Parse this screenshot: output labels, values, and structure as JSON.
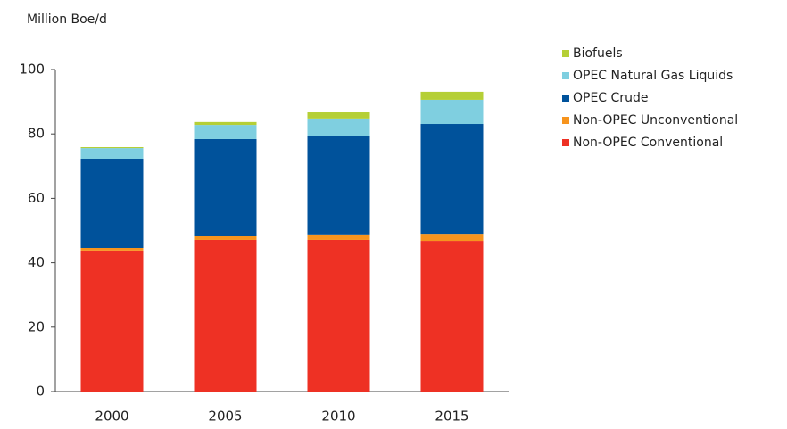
{
  "chart_data": {
    "type": "stacked_bar",
    "y_label": "Million Boe/d",
    "categories": [
      "2000",
      "2005",
      "2010",
      "2015"
    ],
    "series": [
      {
        "name": "Non-OPEC Conventional",
        "color": "#ee3124",
        "values": [
          43.8,
          47.1,
          47.1,
          46.8
        ]
      },
      {
        "name": "Non-OPEC Unconventional",
        "color": "#f7941d",
        "values": [
          0.8,
          1.1,
          1.7,
          2.2
        ]
      },
      {
        "name": "OPEC Crude",
        "color": "#00529b",
        "values": [
          27.7,
          30.2,
          30.7,
          34.1
        ]
      },
      {
        "name": "OPEC Natural Gas Liquids",
        "color": "#7fcfe0",
        "values": [
          3.3,
          4.4,
          5.3,
          7.5
        ]
      },
      {
        "name": "Biofuels",
        "color": "#b5cf36",
        "values": [
          0.3,
          0.9,
          1.9,
          2.5
        ]
      }
    ],
    "ylim": [
      0,
      100
    ],
    "yticks": [
      0,
      20,
      40,
      60,
      80,
      100
    ],
    "legend": "right"
  }
}
